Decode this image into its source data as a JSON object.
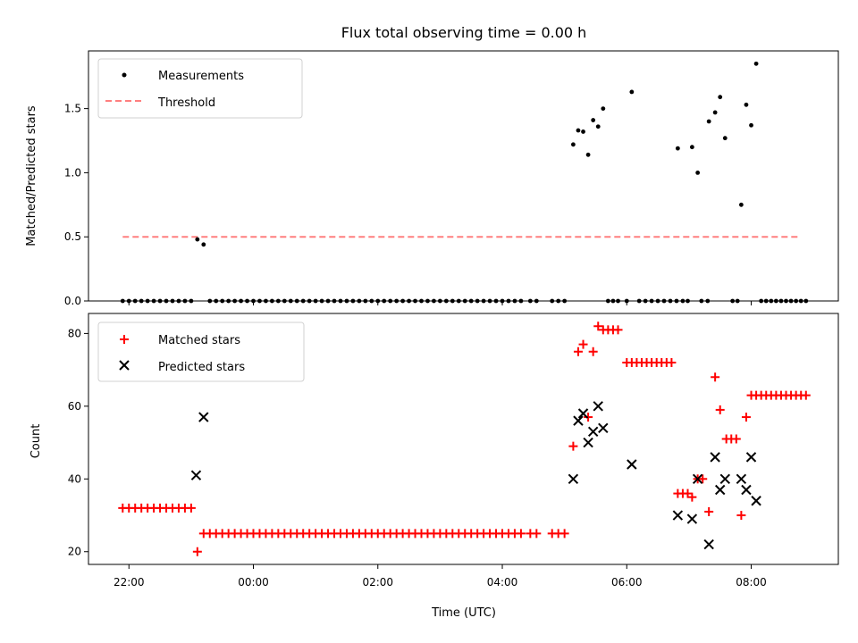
{
  "chart_data": [
    {
      "type": "scatter",
      "title": "Flux total observing time = 0.00 h",
      "xlabel": "",
      "ylabel": "Matched/Predicted stars",
      "x_unit": "hours since 22:00 (UTC)",
      "ylim": [
        0,
        1.95
      ],
      "yticks": [
        0.0,
        0.5,
        1.0,
        1.5
      ],
      "ytick_labels": [
        "0.0",
        "0.5",
        "1.0",
        "1.5"
      ],
      "legend_position": "top-left",
      "series": [
        {
          "name": "Measurements",
          "color": "#000000",
          "marker": "dot",
          "points": [
            [
              -0.1,
              0
            ],
            [
              0.0,
              0
            ],
            [
              0.1,
              0
            ],
            [
              0.2,
              0
            ],
            [
              0.3,
              0
            ],
            [
              0.4,
              0
            ],
            [
              0.5,
              0
            ],
            [
              0.6,
              0
            ],
            [
              0.7,
              0
            ],
            [
              0.8,
              0
            ],
            [
              0.9,
              0
            ],
            [
              1.0,
              0
            ],
            [
              1.1,
              0.48
            ],
            [
              1.2,
              0.44
            ],
            [
              1.3,
              0
            ],
            [
              1.4,
              0
            ],
            [
              1.5,
              0
            ],
            [
              1.6,
              0
            ],
            [
              1.7,
              0
            ],
            [
              1.8,
              0
            ],
            [
              1.9,
              0
            ],
            [
              2.0,
              0
            ],
            [
              2.1,
              0
            ],
            [
              2.2,
              0
            ],
            [
              2.3,
              0
            ],
            [
              2.4,
              0
            ],
            [
              2.5,
              0
            ],
            [
              2.6,
              0
            ],
            [
              2.7,
              0
            ],
            [
              2.8,
              0
            ],
            [
              2.9,
              0
            ],
            [
              3.0,
              0
            ],
            [
              3.1,
              0
            ],
            [
              3.2,
              0
            ],
            [
              3.3,
              0
            ],
            [
              3.4,
              0
            ],
            [
              3.5,
              0
            ],
            [
              3.6,
              0
            ],
            [
              3.7,
              0
            ],
            [
              3.8,
              0
            ],
            [
              3.9,
              0
            ],
            [
              4.0,
              0
            ],
            [
              4.1,
              0
            ],
            [
              4.2,
              0
            ],
            [
              4.3,
              0
            ],
            [
              4.4,
              0
            ],
            [
              4.5,
              0
            ],
            [
              4.6,
              0
            ],
            [
              4.7,
              0
            ],
            [
              4.8,
              0
            ],
            [
              4.9,
              0
            ],
            [
              5.0,
              0
            ],
            [
              5.1,
              0
            ],
            [
              5.2,
              0
            ],
            [
              5.3,
              0
            ],
            [
              5.4,
              0
            ],
            [
              5.5,
              0
            ],
            [
              5.6,
              0
            ],
            [
              5.7,
              0
            ],
            [
              5.8,
              0
            ],
            [
              5.9,
              0
            ],
            [
              6.0,
              0
            ],
            [
              6.1,
              0
            ],
            [
              6.2,
              0
            ],
            [
              6.3,
              0
            ],
            [
              6.45,
              0
            ],
            [
              6.55,
              0
            ],
            [
              6.8,
              0
            ],
            [
              6.9,
              0
            ],
            [
              7.0,
              0
            ],
            [
              7.14,
              1.22
            ],
            [
              7.22,
              1.33
            ],
            [
              7.3,
              1.32
            ],
            [
              7.38,
              1.14
            ],
            [
              7.46,
              1.41
            ],
            [
              7.54,
              1.36
            ],
            [
              7.62,
              1.5
            ],
            [
              7.7,
              0
            ],
            [
              7.78,
              0
            ],
            [
              7.86,
              0
            ],
            [
              8.0,
              0
            ],
            [
              8.08,
              1.63
            ],
            [
              8.2,
              0
            ],
            [
              8.3,
              0
            ],
            [
              8.4,
              0
            ],
            [
              8.5,
              0
            ],
            [
              8.6,
              0
            ],
            [
              8.7,
              0
            ],
            [
              8.8,
              0
            ],
            [
              8.82,
              1.19
            ],
            [
              8.9,
              0
            ],
            [
              8.98,
              0
            ],
            [
              9.05,
              1.2
            ],
            [
              9.14,
              1.0
            ],
            [
              9.2,
              0
            ],
            [
              9.3,
              0
            ],
            [
              9.32,
              1.4
            ],
            [
              9.42,
              1.47
            ],
            [
              9.5,
              1.59
            ],
            [
              9.58,
              1.27
            ],
            [
              9.7,
              0
            ],
            [
              9.78,
              0
            ],
            [
              9.84,
              0.75
            ],
            [
              9.92,
              1.53
            ],
            [
              10.0,
              1.37
            ],
            [
              10.08,
              1.85
            ],
            [
              10.16,
              0
            ],
            [
              10.24,
              0
            ],
            [
              10.32,
              0
            ],
            [
              10.4,
              0
            ],
            [
              10.48,
              0
            ],
            [
              10.56,
              0
            ],
            [
              10.64,
              0
            ],
            [
              10.72,
              0
            ],
            [
              10.8,
              0
            ],
            [
              10.88,
              0
            ]
          ]
        },
        {
          "name": "Threshold",
          "color": "#ff7f7f",
          "style": "dashed",
          "x_range": [
            -0.1,
            10.8
          ],
          "value": 0.5
        }
      ]
    },
    {
      "type": "scatter",
      "title": "",
      "xlabel": "Time (UTC)",
      "ylabel": "Count",
      "x_unit": "hours since 22:00 (UTC)",
      "xlim": [
        -0.65,
        11.4
      ],
      "xticks": [
        0,
        2,
        4,
        6,
        8,
        10
      ],
      "xtick_labels": [
        "22:00",
        "00:00",
        "02:00",
        "04:00",
        "06:00",
        "08:00"
      ],
      "ylim": [
        16.5,
        85.5
      ],
      "yticks": [
        20,
        40,
        60,
        80
      ],
      "ytick_labels": [
        "20",
        "40",
        "60",
        "80"
      ],
      "legend_position": "top-left",
      "series": [
        {
          "name": "Matched stars",
          "color": "#ff0000",
          "marker": "plus",
          "points": [
            [
              -0.1,
              32
            ],
            [
              0.0,
              32
            ],
            [
              0.1,
              32
            ],
            [
              0.2,
              32
            ],
            [
              0.3,
              32
            ],
            [
              0.4,
              32
            ],
            [
              0.5,
              32
            ],
            [
              0.6,
              32
            ],
            [
              0.7,
              32
            ],
            [
              0.8,
              32
            ],
            [
              0.9,
              32
            ],
            [
              1.0,
              32
            ],
            [
              1.1,
              20
            ],
            [
              1.2,
              25
            ],
            [
              1.3,
              25
            ],
            [
              1.4,
              25
            ],
            [
              1.5,
              25
            ],
            [
              1.6,
              25
            ],
            [
              1.7,
              25
            ],
            [
              1.8,
              25
            ],
            [
              1.9,
              25
            ],
            [
              2.0,
              25
            ],
            [
              2.1,
              25
            ],
            [
              2.2,
              25
            ],
            [
              2.3,
              25
            ],
            [
              2.4,
              25
            ],
            [
              2.5,
              25
            ],
            [
              2.6,
              25
            ],
            [
              2.7,
              25
            ],
            [
              2.8,
              25
            ],
            [
              2.9,
              25
            ],
            [
              3.0,
              25
            ],
            [
              3.1,
              25
            ],
            [
              3.2,
              25
            ],
            [
              3.3,
              25
            ],
            [
              3.4,
              25
            ],
            [
              3.5,
              25
            ],
            [
              3.6,
              25
            ],
            [
              3.7,
              25
            ],
            [
              3.8,
              25
            ],
            [
              3.9,
              25
            ],
            [
              4.0,
              25
            ],
            [
              4.1,
              25
            ],
            [
              4.2,
              25
            ],
            [
              4.3,
              25
            ],
            [
              4.4,
              25
            ],
            [
              4.5,
              25
            ],
            [
              4.6,
              25
            ],
            [
              4.7,
              25
            ],
            [
              4.8,
              25
            ],
            [
              4.9,
              25
            ],
            [
              5.0,
              25
            ],
            [
              5.1,
              25
            ],
            [
              5.2,
              25
            ],
            [
              5.3,
              25
            ],
            [
              5.4,
              25
            ],
            [
              5.5,
              25
            ],
            [
              5.6,
              25
            ],
            [
              5.7,
              25
            ],
            [
              5.8,
              25
            ],
            [
              5.9,
              25
            ],
            [
              6.0,
              25
            ],
            [
              6.1,
              25
            ],
            [
              6.2,
              25
            ],
            [
              6.3,
              25
            ],
            [
              6.45,
              25
            ],
            [
              6.55,
              25
            ],
            [
              6.8,
              25
            ],
            [
              6.9,
              25
            ],
            [
              7.0,
              25
            ],
            [
              7.14,
              49
            ],
            [
              7.22,
              75
            ],
            [
              7.3,
              77
            ],
            [
              7.38,
              57
            ],
            [
              7.46,
              75
            ],
            [
              7.54,
              82
            ],
            [
              7.62,
              81
            ],
            [
              7.7,
              81
            ],
            [
              7.78,
              81
            ],
            [
              7.86,
              81
            ],
            [
              8.0,
              72
            ],
            [
              8.08,
              72
            ],
            [
              8.16,
              72
            ],
            [
              8.24,
              72
            ],
            [
              8.32,
              72
            ],
            [
              8.4,
              72
            ],
            [
              8.48,
              72
            ],
            [
              8.56,
              72
            ],
            [
              8.64,
              72
            ],
            [
              8.72,
              72
            ],
            [
              8.82,
              36
            ],
            [
              8.9,
              36
            ],
            [
              8.98,
              36
            ],
            [
              9.05,
              35
            ],
            [
              9.14,
              40
            ],
            [
              9.22,
              40
            ],
            [
              9.32,
              31
            ],
            [
              9.42,
              68
            ],
            [
              9.5,
              59
            ],
            [
              9.6,
              51
            ],
            [
              9.68,
              51
            ],
            [
              9.76,
              51
            ],
            [
              9.84,
              30
            ],
            [
              9.92,
              57
            ],
            [
              10.0,
              63
            ],
            [
              10.08,
              63
            ],
            [
              10.16,
              63
            ],
            [
              10.24,
              63
            ],
            [
              10.32,
              63
            ],
            [
              10.4,
              63
            ],
            [
              10.48,
              63
            ],
            [
              10.56,
              63
            ],
            [
              10.64,
              63
            ],
            [
              10.72,
              63
            ],
            [
              10.8,
              63
            ],
            [
              10.88,
              63
            ]
          ]
        },
        {
          "name": "Predicted stars",
          "color": "#000000",
          "marker": "x",
          "points": [
            [
              1.08,
              41
            ],
            [
              1.2,
              57
            ],
            [
              7.14,
              40
            ],
            [
              7.22,
              56
            ],
            [
              7.3,
              58
            ],
            [
              7.38,
              50
            ],
            [
              7.46,
              53
            ],
            [
              7.54,
              60
            ],
            [
              7.62,
              54
            ],
            [
              8.08,
              44
            ],
            [
              8.82,
              30
            ],
            [
              9.05,
              29
            ],
            [
              9.14,
              40
            ],
            [
              9.32,
              22
            ],
            [
              9.42,
              46
            ],
            [
              9.5,
              37
            ],
            [
              9.58,
              40
            ],
            [
              9.84,
              40
            ],
            [
              9.92,
              37
            ],
            [
              10.0,
              46
            ],
            [
              10.08,
              34
            ]
          ]
        }
      ]
    }
  ]
}
